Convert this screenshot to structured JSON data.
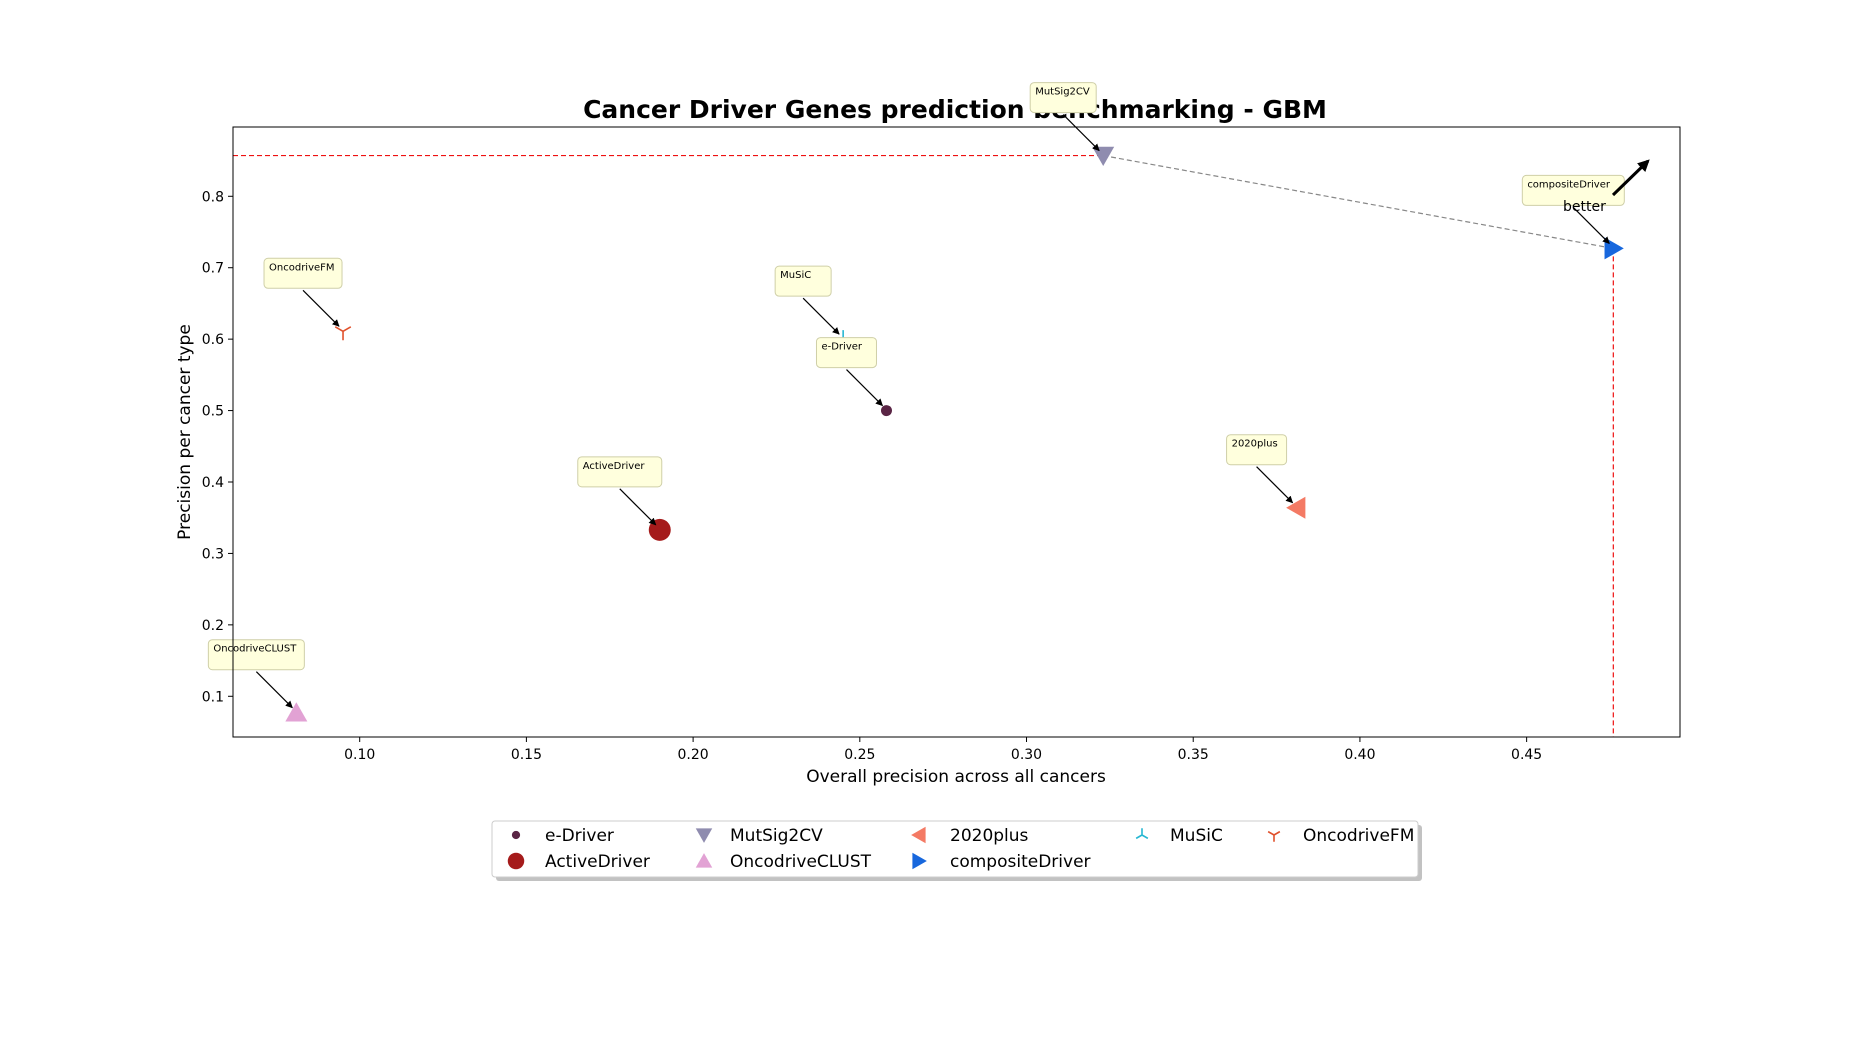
{
  "chart_data": {
    "type": "scatter",
    "title": "Cancer Driver Genes prediction benchmarking - GBM",
    "xlabel": "Overall precision across all cancers",
    "ylabel": "Precision per cancer type",
    "xlim": [
      0.062,
      0.496
    ],
    "ylim": [
      0.043,
      0.897
    ],
    "xticks": [
      "0.10",
      "0.15",
      "0.20",
      "0.25",
      "0.30",
      "0.35",
      "0.40",
      "0.45"
    ],
    "yticks": [
      "0.1",
      "0.2",
      "0.3",
      "0.4",
      "0.5",
      "0.6",
      "0.7",
      "0.8"
    ],
    "grid": false,
    "legend_position": "bottom-center",
    "series": [
      {
        "name": "e-Driver",
        "x": 0.258,
        "y": 0.5,
        "marker": "circle-small",
        "color": "#5a2545"
      },
      {
        "name": "ActiveDriver",
        "x": 0.19,
        "y": 0.333,
        "marker": "circle-large",
        "color": "#a51b1b"
      },
      {
        "name": "MutSig2CV",
        "x": 0.323,
        "y": 0.857,
        "marker": "triangle-down",
        "color": "#8f8caf"
      },
      {
        "name": "OncodriveCLUST",
        "x": 0.081,
        "y": 0.077,
        "marker": "triangle-up",
        "color": "#e2a2d4"
      },
      {
        "name": "2020plus",
        "x": 0.381,
        "y": 0.364,
        "marker": "triangle-left",
        "color": "#f47a64"
      },
      {
        "name": "compositeDriver",
        "x": 0.476,
        "y": 0.727,
        "marker": "triangle-right",
        "color": "#1767dd"
      },
      {
        "name": "MuSiC",
        "x": 0.245,
        "y": 0.6,
        "marker": "tri-down",
        "color": "#26b7d2"
      },
      {
        "name": "OncodriveFM",
        "x": 0.095,
        "y": 0.611,
        "marker": "tri-up",
        "color": "#e0512c"
      }
    ],
    "annotations": [
      {
        "text": "better"
      }
    ],
    "reference_lines": [
      {
        "kind": "horizontal",
        "y": 0.857,
        "x_to": 0.323,
        "color": "#ee1111"
      },
      {
        "kind": "vertical",
        "x": 0.476,
        "y_to": 0.727,
        "color": "#ee1111"
      },
      {
        "kind": "segment",
        "from": [
          0.323,
          0.857
        ],
        "to": [
          0.476,
          0.727
        ],
        "color": "#888888"
      }
    ]
  }
}
